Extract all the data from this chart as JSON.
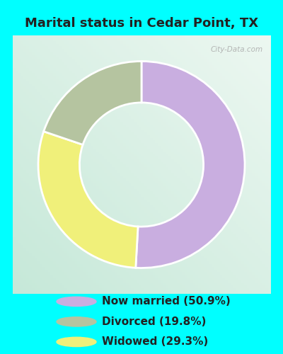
{
  "title": "Marital status in Cedar Point, TX",
  "slices": [
    50.9,
    29.3,
    19.8
  ],
  "labels": [
    "Now married (50.9%)",
    "Divorced (19.8%)",
    "Widowed (29.3%)"
  ],
  "colors": [
    "#c9aee0",
    "#f0f07a",
    "#b5c4a0"
  ],
  "legend_colors": [
    "#c9aee0",
    "#b5c4a0",
    "#f0f07a"
  ],
  "background_color": "#00ffff",
  "title_fontsize": 13,
  "title_color": "#222222",
  "legend_fontsize": 11,
  "watermark": "City-Data.com",
  "start_angle": 90
}
